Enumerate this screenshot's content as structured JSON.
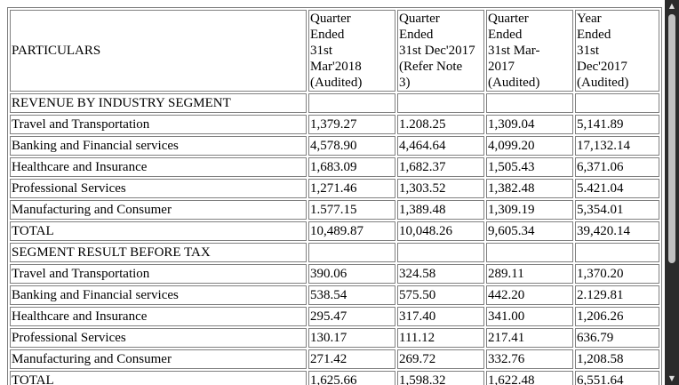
{
  "header": {
    "particulars": "PARTICULARS",
    "col1": [
      "Quarter",
      "Ended",
      "31st",
      "Mar'2018",
      "(Audited)"
    ],
    "col2": [
      "Quarter",
      "Ended",
      "31st Dec'2017",
      "(Refer Note",
      "3)"
    ],
    "col3": [
      "Quarter",
      "Ended",
      "31st Mar-",
      "2017",
      "(Audited)"
    ],
    "col4": [
      "Year",
      "Ended",
      "31st",
      "Dec'2017",
      "(Audited)"
    ]
  },
  "sections": [
    {
      "title": "REVENUE BY INDUSTRY SEGMENT",
      "rows": [
        {
          "label": "Travel and Transportation",
          "values": [
            "1,379.27",
            "1.208.25",
            "1,309.04",
            "5,141.89"
          ]
        },
        {
          "label": "Banking and Financial services",
          "values": [
            "4,578.90",
            "4,464.64",
            "4,099.20",
            "17,132.14"
          ]
        },
        {
          "label": "Healthcare and Insurance",
          "values": [
            "1,683.09",
            "1,682.37",
            "1,505.43",
            "6,371.06"
          ]
        },
        {
          "label": "Professional Services",
          "values": [
            "1,271.46",
            "1,303.52",
            "1,382.48",
            "5.421.04"
          ]
        },
        {
          "label": "Manufacturing and Consumer",
          "values": [
            "1.577.15",
            "1,389.48",
            "1,309.19",
            "5,354.01"
          ]
        },
        {
          "label": "TOTAL",
          "values": [
            "10,489.87",
            "10,048.26",
            "9,605.34",
            "39,420.14"
          ]
        }
      ]
    },
    {
      "title": "SEGMENT RESULT BEFORE TAX",
      "rows": [
        {
          "label": "Travel and Transportation",
          "values": [
            "390.06",
            "324.58",
            "289.11",
            "1,370.20"
          ]
        },
        {
          "label": "Banking and Financial services",
          "values": [
            "538.54",
            "575.50",
            "442.20",
            "2.129.81"
          ]
        },
        {
          "label": "Healthcare and Insurance",
          "values": [
            "295.47",
            "317.40",
            "341.00",
            "1,206.26"
          ]
        },
        {
          "label": "Professional Services",
          "values": [
            "130.17",
            "111.12",
            "217.41",
            "636.79"
          ]
        },
        {
          "label": "Manufacturing and Consumer",
          "values": [
            "271.42",
            "269.72",
            "332.76",
            "1,208.58"
          ]
        },
        {
          "label": "TOTAL",
          "values": [
            "1,625.66",
            "1,598.32",
            "1,622.48",
            "6,551.64"
          ]
        }
      ]
    }
  ],
  "scrollbar": {
    "up_glyph": "▲",
    "down_glyph": "▼"
  }
}
